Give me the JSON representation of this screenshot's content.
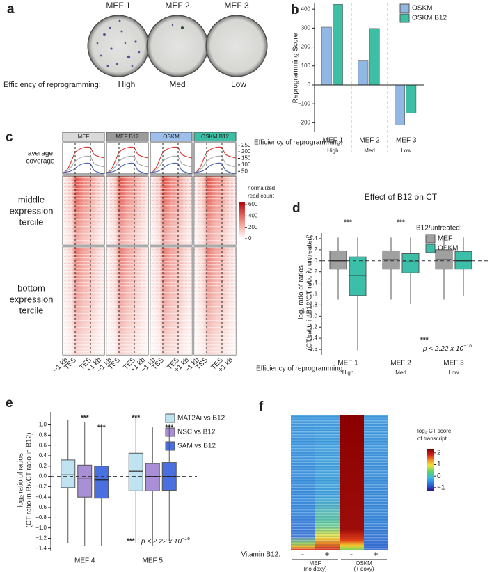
{
  "panel_labels": [
    "a",
    "b",
    "c",
    "d",
    "e",
    "f"
  ],
  "plates": {
    "titles": [
      "MEF 1",
      "MEF 2",
      "MEF 3"
    ],
    "row_label": "Efficiency of reprogramming:",
    "efficiencies": [
      "High",
      "Med",
      "Low"
    ]
  },
  "coverage_heatmap": {
    "conditions": [
      "MEF",
      "MEF B12",
      "OSKM",
      "OSKM B12"
    ],
    "profile_label": [
      "average",
      "coverage"
    ],
    "profile_ylim": [
      30,
      270
    ],
    "profile_ticks": [
      250,
      200,
      150,
      100,
      50
    ],
    "colorbar_title": [
      "normalized",
      "read count"
    ],
    "colorbar_lim": [
      0,
      650
    ],
    "colorbar_ticks": [
      600,
      400,
      200,
      0
    ],
    "row_groups": [
      [
        "middle",
        "expression",
        "tercile"
      ],
      [
        "bottom",
        "expression",
        "tercile"
      ]
    ],
    "x_labels": [
      "−1 kb",
      "TSS",
      "TES",
      "+1 kb"
    ]
  },
  "ct_heatmap": {
    "colorbar_title": [
      "log₂ CT score",
      "of transcript"
    ],
    "colorbar_lim": [
      -1.25,
      2.35
    ],
    "colorbar_ticks": [
      2,
      1,
      0,
      {
        "value": -1,
        "label": "−1"
      }
    ],
    "row_label": "Vitamin B12:",
    "columns": [
      "-",
      "+",
      "-",
      "+"
    ],
    "groups": [
      {
        "name": "MEF",
        "note": "(no doxy)"
      },
      {
        "name": "OSKM",
        "note": "(+ doxy)"
      }
    ]
  },
  "chart_data": [
    {
      "type": "bar",
      "y_label": "Reprogramming Score",
      "x_note": "Efficiency of reprogramming:",
      "categories": [
        "MEF 1",
        "MEF 2",
        "MEF 3"
      ],
      "category_sublabels": [
        "High",
        "Med",
        "Low"
      ],
      "ylim": [
        -250,
        430
      ],
      "yticks": [
        400,
        300,
        200,
        100,
        0,
        {
          "value": -100,
          "label": "−100"
        },
        {
          "value": -200,
          "label": "−200"
        }
      ],
      "legend": "upper right",
      "series": [
        {
          "name": "OSKM",
          "color": "#93b7e3",
          "values": [
            305,
            130,
            -212
          ]
        },
        {
          "name": "OSKM B12",
          "color": "#3dbfa6",
          "values": [
            425,
            298,
            -148
          ]
        }
      ]
    },
    {
      "type": "box",
      "title": "Effect of B12 on CT",
      "y_label": [
        "log₂ ratio of ratios",
        "(CT ratio in B12/CT ratio in untreated)"
      ],
      "x_note": "Efficiency of reprogramming:",
      "legend_title": "B12/untreated:",
      "legend": "upper right",
      "categories": [
        "MEF 1",
        "MEF 2",
        "MEF 3"
      ],
      "category_sublabels": [
        "High",
        "Med",
        "Low"
      ],
      "significance": [
        "***",
        "***",
        null
      ],
      "reference_line": 0,
      "p_value": {
        "stars": "***",
        "text": "p < 2.22 x 10",
        "exponent": "−16"
      },
      "ylim": [
        -1.7,
        0.5
      ],
      "yticks": [
        0.4,
        0.2,
        {
          "value": 0,
          "label": "0.0"
        },
        {
          "value": -0.2,
          "label": "−0.2"
        },
        {
          "value": -0.4,
          "label": "−0.4"
        },
        {
          "value": -0.6,
          "label": "−0.6"
        },
        {
          "value": -0.8,
          "label": "−0.8"
        },
        {
          "value": -1,
          "label": "−1.0"
        },
        {
          "value": -1.2,
          "label": "−1.2"
        },
        {
          "value": -1.4,
          "label": "−1.4"
        },
        {
          "value": -1.6,
          "label": "−1.6"
        }
      ],
      "series": [
        {
          "name": "MEF",
          "color": "#a0a0a0",
          "min": [
            -0.7,
            -0.7,
            -0.7
          ],
          "q1": [
            -0.15,
            -0.15,
            -0.15
          ],
          "median": [
            0,
            0.02,
            0.02
          ],
          "q3": [
            0.18,
            0.18,
            0.2
          ],
          "max": [
            0.42,
            0.42,
            0.45
          ]
        },
        {
          "name": "OSKM",
          "color": "#3cbfa8",
          "min": [
            -1.62,
            -0.78,
            -0.63
          ],
          "q1": [
            -0.63,
            -0.22,
            -0.15
          ],
          "median": [
            -0.27,
            -0.02,
            0
          ],
          "q3": [
            0.07,
            0.13,
            0.17
          ],
          "max": [
            0.42,
            0.42,
            0.42
          ]
        }
      ]
    },
    {
      "type": "box",
      "y_label": [
        "log₂ ratio of ratios",
        "(CT ratio in Rx/CT ratio in B12)"
      ],
      "legend": "upper right",
      "categories": [
        "MEF 4",
        "MEF 5"
      ],
      "reference_line": 0,
      "p_value": {
        "stars": "***",
        "text": "p < 2.22 x 10",
        "exponent": "−16"
      },
      "ylim": [
        -1.45,
        1.25
      ],
      "yticks": [
        {
          "value": 1,
          "label": "1.0"
        },
        0.8,
        0.6,
        0.4,
        0.2,
        {
          "value": 0,
          "label": "0.0"
        },
        {
          "value": -0.2,
          "label": "−0.2"
        },
        {
          "value": -0.4,
          "label": "−0.4"
        },
        {
          "value": -0.6,
          "label": "−0.6"
        },
        {
          "value": -0.8,
          "label": "−0.8"
        },
        {
          "value": -1,
          "label": "−1.0"
        },
        {
          "value": -1.2,
          "label": "−1.2"
        },
        {
          "value": -1.4,
          "label": "−1.4"
        }
      ],
      "series": [
        {
          "name": "MAT2Ai vs B12",
          "color": "#bfe3f0",
          "min": [
            -1.3,
            -1.3
          ],
          "q1": [
            -0.22,
            -0.28
          ],
          "median": [
            0.03,
            0.1
          ],
          "q3": [
            0.32,
            0.45
          ],
          "max": [
            1.1,
            1.15
          ],
          "significance": [
            null,
            "***"
          ]
        },
        {
          "name": "NSC vs B12",
          "color": "#a98fd6",
          "min": [
            -1.35,
            -1.35
          ],
          "q1": [
            -0.4,
            -0.28
          ],
          "median": [
            -0.05,
            0
          ],
          "q3": [
            0.22,
            0.25
          ],
          "max": [
            1.05,
            0.95
          ],
          "significance": [
            "***",
            null
          ]
        },
        {
          "name": "SAM vs B12",
          "color": "#4a6fe0",
          "min": [
            -1.35,
            -1.25
          ],
          "q1": [
            -0.42,
            -0.27
          ],
          "median": [
            -0.07,
            0
          ],
          "q3": [
            0.2,
            0.27
          ],
          "max": [
            1,
            1
          ],
          "significance": [
            "***",
            "***"
          ]
        }
      ]
    }
  ]
}
